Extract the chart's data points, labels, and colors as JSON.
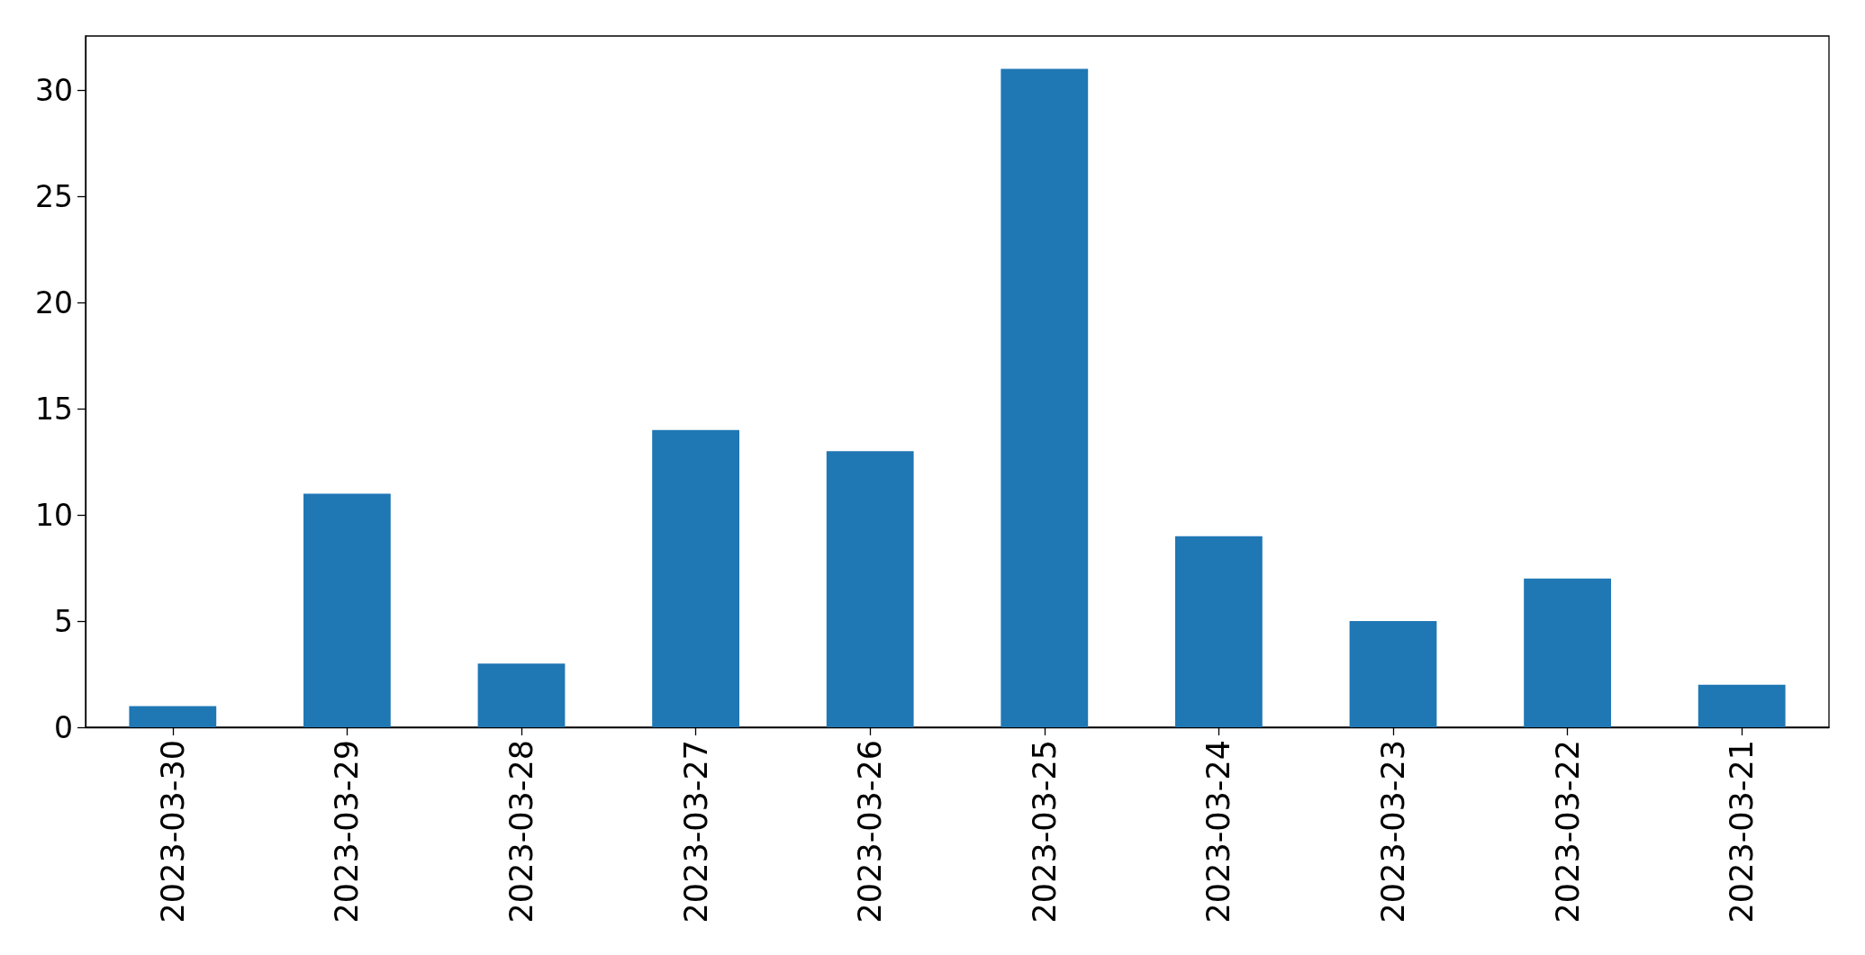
{
  "chart_data": {
    "type": "bar",
    "categories": [
      "2023-03-30",
      "2023-03-29",
      "2023-03-28",
      "2023-03-27",
      "2023-03-26",
      "2023-03-25",
      "2023-03-24",
      "2023-03-23",
      "2023-03-22",
      "2023-03-21"
    ],
    "values": [
      1,
      11,
      3,
      14,
      13,
      31,
      9,
      5,
      7,
      2
    ],
    "color": "#1f77b4",
    "ylim": [
      0,
      32.55
    ],
    "yticks": [
      0,
      5,
      10,
      15,
      20,
      25,
      30
    ]
  }
}
